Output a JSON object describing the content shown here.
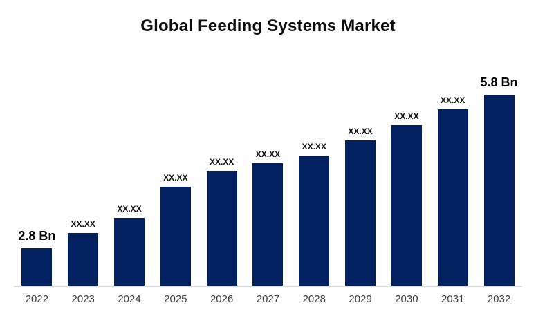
{
  "title": "Global Feeding Systems Market",
  "chart_data": {
    "type": "bar",
    "title": "Global Feeding Systems Market",
    "xlabel": "",
    "ylabel": "",
    "categories": [
      "2022",
      "2023",
      "2024",
      "2025",
      "2026",
      "2027",
      "2028",
      "2029",
      "2030",
      "2031",
      "2032"
    ],
    "bar_labels": [
      "2.8 Bn",
      "XX.XX",
      "XX.XX",
      "XX.XX",
      "XX.XX",
      "XX.XX",
      "XX.XX",
      "XX.XX",
      "XX.XX",
      "XX.XX",
      "5.8 Bn"
    ],
    "values": [
      2.8,
      3.1,
      3.39,
      4.0,
      4.31,
      4.46,
      4.61,
      4.91,
      5.21,
      5.52,
      5.8
    ],
    "known_values": {
      "2022": "2.8 Bn",
      "2032": "5.8 Bn"
    },
    "unit_suffix": "Bn",
    "bar_color": "#002060",
    "axis_line_color": "#d9d9d9",
    "year_label_color": "#3f3f3f",
    "grid": false,
    "legend": false,
    "ylim_note": "axis not shown; bar heights estimated from pixels, baseline not at zero"
  }
}
